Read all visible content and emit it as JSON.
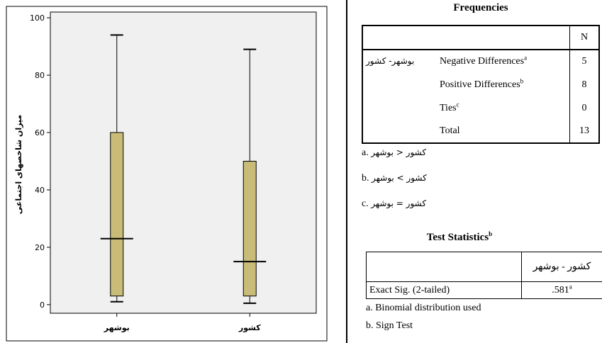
{
  "chart_data": {
    "type": "boxplot",
    "ylabel": "میزان شاخصهای اجتماعی",
    "ylim": [
      -3,
      102
    ],
    "yticks": [
      0,
      20,
      40,
      60,
      80,
      100
    ],
    "categories": [
      "بوشهر",
      "کشور"
    ],
    "boxes": [
      {
        "category": "بوشهر",
        "min": 1,
        "q1": 3,
        "median": 23,
        "q3": 60,
        "max": 94
      },
      {
        "category": "کشور",
        "min": 0.5,
        "q1": 3,
        "median": 15,
        "q3": 50,
        "max": 89
      }
    ],
    "box_color": "#c8bc78",
    "plot_bg": "#f0f0f0"
  },
  "frequencies": {
    "title": "Frequencies",
    "col_header": "N",
    "row_group": "بوشهر- کشور",
    "rows": [
      {
        "label": "Negative Differences",
        "sup": "a",
        "value": "5"
      },
      {
        "label": "Positive Differences",
        "sup": "b",
        "value": "8"
      },
      {
        "label": "Ties",
        "sup": "c",
        "value": "0"
      },
      {
        "label": "Total",
        "sup": "",
        "value": "13"
      }
    ],
    "notes": [
      {
        "prefix": "a. ",
        "text": "کشور < بوشهر"
      },
      {
        "prefix": "b. ",
        "text": "کشور > بوشهر"
      },
      {
        "prefix": "c. ",
        "text": "کشور = بوشهر"
      }
    ]
  },
  "test_statistics": {
    "title": "Test Statistics",
    "title_sup": "b",
    "col_header": "کشور - بوشهر",
    "row_label": "Exact Sig. (2-tailed)",
    "value": ".581",
    "value_sup": "a",
    "notes": [
      "a. Binomial distribution used",
      "b. Sign Test"
    ]
  }
}
